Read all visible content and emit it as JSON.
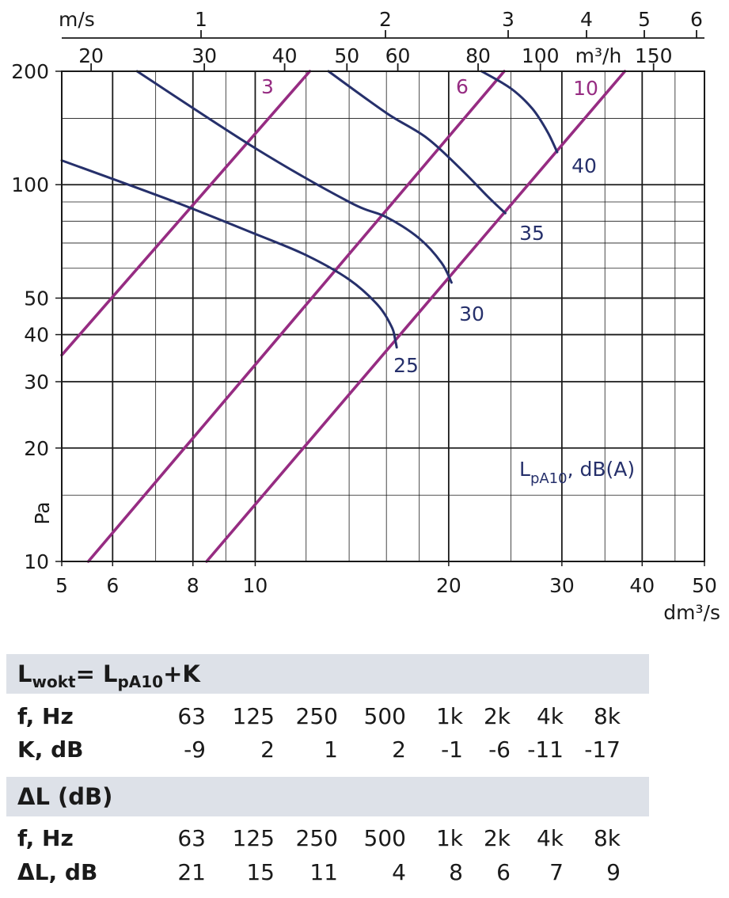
{
  "chart_data": {
    "type": "line",
    "title": "",
    "x_axis": {
      "label": "dm³/s",
      "scale": "log",
      "range": [
        5,
        50
      ],
      "ticks": [
        "5",
        "6",
        "8",
        "10",
        "20",
        "30",
        "40",
        "50"
      ]
    },
    "y_axis": {
      "label": "Pa",
      "scale": "log",
      "range": [
        10,
        200
      ],
      "ticks": [
        "10",
        "20",
        "30",
        "40",
        "50",
        "100",
        "200"
      ]
    },
    "top_axis_velocity": {
      "label": "m/s",
      "ticks": [
        "1",
        "2",
        "3",
        "4",
        "5",
        "6"
      ]
    },
    "top_axis_flow": {
      "label": "m³/h",
      "ticks": [
        "20",
        "30",
        "40",
        "50",
        "60",
        "80",
        "100",
        "150"
      ]
    },
    "legend_note": {
      "main": "L",
      "sub": "pA10",
      "rest": ", dB(A)"
    },
    "grid": true,
    "series": [
      {
        "name": "3",
        "kind": "velocity",
        "x": [
          5,
          12.16
        ],
        "y": [
          35.3,
          200
        ]
      },
      {
        "name": "6",
        "kind": "velocity",
        "x": [
          5.5,
          24.4
        ],
        "y": [
          10,
          200
        ]
      },
      {
        "name": "10",
        "kind": "velocity",
        "x": [
          8.4,
          37.6
        ],
        "y": [
          10,
          200
        ]
      },
      {
        "name": "25",
        "kind": "sound",
        "x": [
          5,
          7.5,
          10,
          12,
          14,
          15.5,
          16.3,
          16.5,
          16.6
        ],
        "y": [
          116,
          90,
          74,
          65,
          56,
          48,
          42,
          39,
          37
        ]
      },
      {
        "name": "30",
        "kind": "sound",
        "x": [
          6.55,
          10,
          14,
          16,
          18,
          19.5,
          20.2
        ],
        "y": [
          200,
          125,
          90,
          82,
          72,
          62,
          55
        ]
      },
      {
        "name": "35",
        "kind": "sound",
        "x": [
          13,
          16,
          18.5,
          21,
          23,
          24.5
        ],
        "y": [
          200,
          155,
          133,
          109,
          93,
          84
        ]
      },
      {
        "name": "40",
        "kind": "sound",
        "x": [
          22.5,
          25,
          27,
          28.5,
          29.5
        ],
        "y": [
          200,
          180,
          159,
          138,
          122
        ]
      }
    ],
    "colors": {
      "velocity": "#962c82",
      "sound": "#26306b",
      "grid": "#1a1a1a"
    }
  },
  "tables": {
    "k": {
      "title": {
        "main": "L",
        "sub1": "wokt",
        "mid": "= L",
        "sub2": "pA10",
        "rest": "+K"
      },
      "row1": {
        "head": "f, Hz",
        "values": [
          "63",
          "125",
          "250",
          "500",
          "1k",
          "2k",
          "4k",
          "8k"
        ]
      },
      "row2": {
        "head": "K, dB",
        "values": [
          "-9",
          "2",
          "1",
          "2",
          "-1",
          "-6",
          "-11",
          "-17"
        ]
      }
    },
    "dl": {
      "title": "ΔL (dB)",
      "row1": {
        "head": "f, Hz",
        "values": [
          "63",
          "125",
          "250",
          "500",
          "1k",
          "2k",
          "4k",
          "8k"
        ]
      },
      "row2": {
        "head": "ΔL, dB",
        "values": [
          "21",
          "15",
          "11",
          "4",
          "8",
          "6",
          "7",
          "9"
        ]
      }
    }
  },
  "colors": {
    "band": "#dde1e8",
    "text": "#1a1a1a"
  }
}
